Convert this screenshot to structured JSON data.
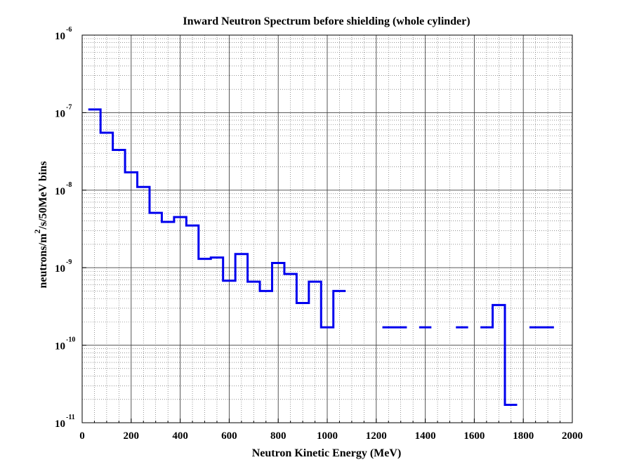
{
  "chart_data": {
    "type": "line",
    "title": "Inward Neutron Spectrum before shielding (whole cylinder)",
    "xlabel": "Neutron Kinetic Energy (MeV)",
    "ylabel": {
      "prefix": "neutrons/m",
      "superscript": "2",
      "suffix": "/s/50MeV bins"
    },
    "xlim": [
      0,
      2000
    ],
    "ylim": [
      1e-11,
      1e-06
    ],
    "yscale": "log",
    "grid": true,
    "xticks": [
      0,
      200,
      400,
      600,
      800,
      1000,
      1200,
      1400,
      1600,
      1800,
      2000
    ],
    "xtick_labels": [
      "0",
      "200",
      "400",
      "600",
      "800",
      "1000",
      "1200",
      "1400",
      "1600",
      "1800",
      "2000"
    ],
    "yticks": [
      {
        "value": 1e-06,
        "base": "10",
        "exp": "-6"
      },
      {
        "value": 1e-07,
        "base": "10",
        "exp": "-7"
      },
      {
        "value": 1e-08,
        "base": "10",
        "exp": "-8"
      },
      {
        "value": 1e-09,
        "base": "10",
        "exp": "-9"
      },
      {
        "value": 1e-10,
        "base": "10",
        "exp": "-10"
      },
      {
        "value": 1e-11,
        "base": "10",
        "exp": "-11"
      }
    ],
    "series": [
      {
        "color": "#0000ee",
        "style": "step",
        "bin_width": 50,
        "bins": [
          {
            "lo": 25,
            "hi": 75,
            "y": 1.1e-07
          },
          {
            "lo": 75,
            "hi": 125,
            "y": 5.5e-08
          },
          {
            "lo": 125,
            "hi": 175,
            "y": 3.3e-08
          },
          {
            "lo": 175,
            "hi": 225,
            "y": 1.7e-08
          },
          {
            "lo": 225,
            "hi": 275,
            "y": 1.1e-08
          },
          {
            "lo": 275,
            "hi": 325,
            "y": 5.1e-09
          },
          {
            "lo": 325,
            "hi": 375,
            "y": 3.9e-09
          },
          {
            "lo": 375,
            "hi": 425,
            "y": 4.5e-09
          },
          {
            "lo": 425,
            "hi": 475,
            "y": 3.5e-09
          },
          {
            "lo": 475,
            "hi": 525,
            "y": 1.3e-09
          },
          {
            "lo": 525,
            "hi": 575,
            "y": 1.35e-09
          },
          {
            "lo": 575,
            "hi": 625,
            "y": 6.8e-10
          },
          {
            "lo": 625,
            "hi": 675,
            "y": 1.5e-09
          },
          {
            "lo": 675,
            "hi": 725,
            "y": 6.6e-10
          },
          {
            "lo": 725,
            "hi": 775,
            "y": 5e-10
          },
          {
            "lo": 775,
            "hi": 825,
            "y": 1.15e-09
          },
          {
            "lo": 825,
            "hi": 875,
            "y": 8.3e-10
          },
          {
            "lo": 875,
            "hi": 925,
            "y": 3.5e-10
          },
          {
            "lo": 925,
            "hi": 975,
            "y": 6.6e-10
          },
          {
            "lo": 975,
            "hi": 1025,
            "y": 1.7e-10
          },
          {
            "lo": 1025,
            "hi": 1075,
            "y": 5e-10
          },
          {
            "lo": 1225,
            "hi": 1275,
            "y": 1.7e-10
          },
          {
            "lo": 1275,
            "hi": 1325,
            "y": 1.7e-10
          },
          {
            "lo": 1375,
            "hi": 1425,
            "y": 1.7e-10
          },
          {
            "lo": 1525,
            "hi": 1575,
            "y": 1.7e-10
          },
          {
            "lo": 1625,
            "hi": 1675,
            "y": 1.7e-10
          },
          {
            "lo": 1675,
            "hi": 1725,
            "y": 3.3e-10
          },
          {
            "lo": 1725,
            "hi": 1775,
            "y": 1.7e-11
          },
          {
            "lo": 1825,
            "hi": 1875,
            "y": 1.7e-10
          },
          {
            "lo": 1875,
            "hi": 1925,
            "y": 1.7e-10
          }
        ]
      }
    ]
  }
}
